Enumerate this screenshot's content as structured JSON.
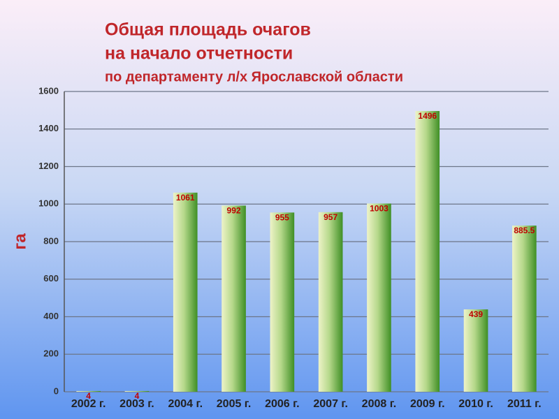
{
  "chart_data": {
    "type": "bar",
    "title": [
      "Общая площадь очагов",
      "на начало отчетности"
    ],
    "subtitle": "по департаменту л/х Ярославской области",
    "y_label": "га",
    "categories": [
      "2002 г.",
      "2003 г.",
      "2004 г.",
      "2005 г.",
      "2006 г.",
      "2007 г.",
      "2008 г.",
      "2009 г.",
      "2010 г.",
      "2011 г."
    ],
    "values": [
      4,
      4,
      1061,
      992,
      955,
      957,
      1003,
      1496,
      439,
      885.5
    ],
    "color": "#3f8f25",
    "ylim": [
      0,
      1600
    ],
    "yticks": [
      0,
      200,
      400,
      600,
      800,
      1000,
      1200,
      1400,
      1600
    ],
    "grid": true
  }
}
